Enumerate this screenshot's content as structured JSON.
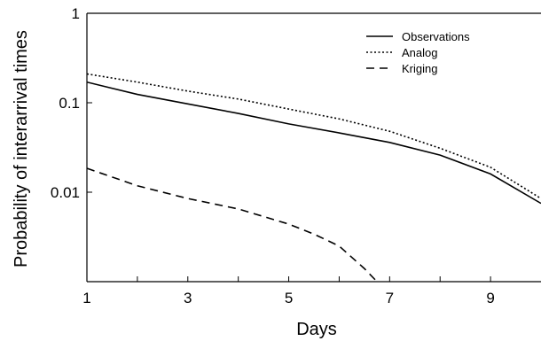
{
  "chart_data": {
    "type": "line",
    "title": "",
    "xlabel": "Days",
    "ylabel": "Probability of interarrival times",
    "xlim": [
      1,
      10
    ],
    "ylim": [
      0.001,
      1
    ],
    "yscale": "log",
    "grid": false,
    "legend_position": "top-right",
    "x_tick_values": [
      1,
      3,
      5,
      7,
      9
    ],
    "x_tick_labels": [
      "1",
      "3",
      "5",
      "7",
      "9"
    ],
    "x_minor_ticks": [
      2,
      4,
      6,
      8
    ],
    "y_tick_values": [
      1,
      0.1,
      0.01
    ],
    "y_tick_labels": [
      "1",
      "0.1",
      "0.01"
    ],
    "series": [
      {
        "name": "Observations",
        "style": "solid",
        "x": [
          1,
          2,
          3,
          4,
          5,
          6,
          7,
          8,
          9,
          10
        ],
        "y": [
          0.17,
          0.124,
          0.097,
          0.076,
          0.058,
          0.046,
          0.036,
          0.026,
          0.016,
          0.0075
        ]
      },
      {
        "name": "Analog",
        "style": "dotted",
        "x": [
          1,
          2,
          3,
          4,
          5,
          6,
          7,
          8,
          9,
          10
        ],
        "y": [
          0.21,
          0.17,
          0.135,
          0.11,
          0.085,
          0.066,
          0.048,
          0.031,
          0.019,
          0.0085
        ]
      },
      {
        "name": "Kriging",
        "style": "dashed",
        "x": [
          1,
          2,
          3,
          4,
          5,
          5.5,
          6,
          6.5,
          6.75
        ],
        "y": [
          0.0185,
          0.0118,
          0.0085,
          0.0065,
          0.0044,
          0.0034,
          0.0025,
          0.0014,
          0.001
        ]
      }
    ]
  }
}
